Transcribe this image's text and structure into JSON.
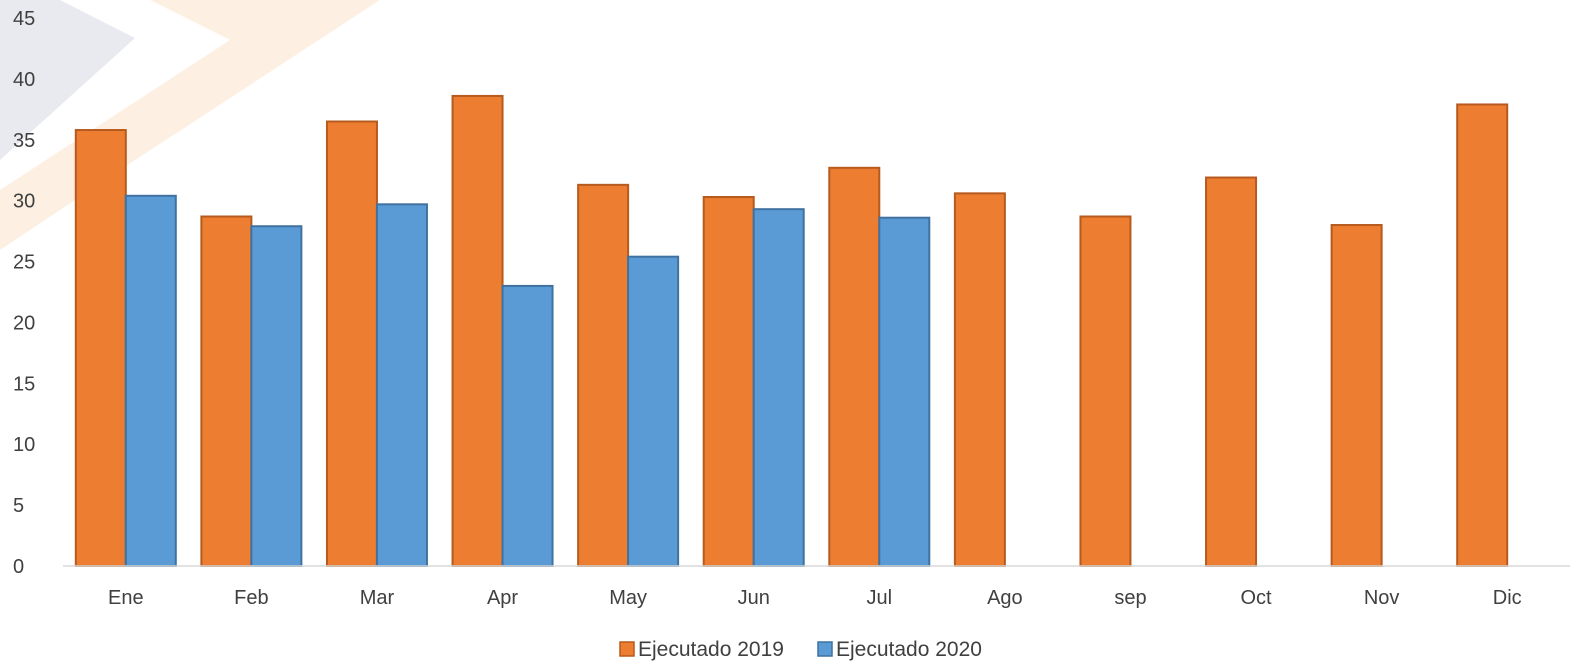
{
  "chart_data": {
    "type": "bar",
    "categories": [
      "Ene",
      "Feb",
      "Mar",
      "Apr",
      "May",
      "Jun",
      "Jul",
      "Ago",
      "sep",
      "Oct",
      "Nov",
      "Dic"
    ],
    "series": [
      {
        "name": "Ejecutado 2019",
        "color": "#ED7D31",
        "stroke": "#B65A1E",
        "values": [
          35.8,
          28.7,
          36.5,
          38.6,
          31.3,
          30.3,
          32.7,
          30.6,
          28.7,
          31.9,
          28.0,
          37.9
        ]
      },
      {
        "name": "Ejecutado 2020",
        "color": "#5B9BD5",
        "stroke": "#3F72A0",
        "values": [
          30.4,
          27.9,
          29.7,
          23.0,
          25.4,
          29.3,
          28.6,
          null,
          null,
          null,
          null,
          null
        ]
      }
    ],
    "yticks": [
      0,
      5,
      10,
      15,
      20,
      25,
      30,
      35,
      40,
      45
    ],
    "ylim": [
      0,
      45
    ],
    "legend": "bottom-center",
    "grid": false
  }
}
